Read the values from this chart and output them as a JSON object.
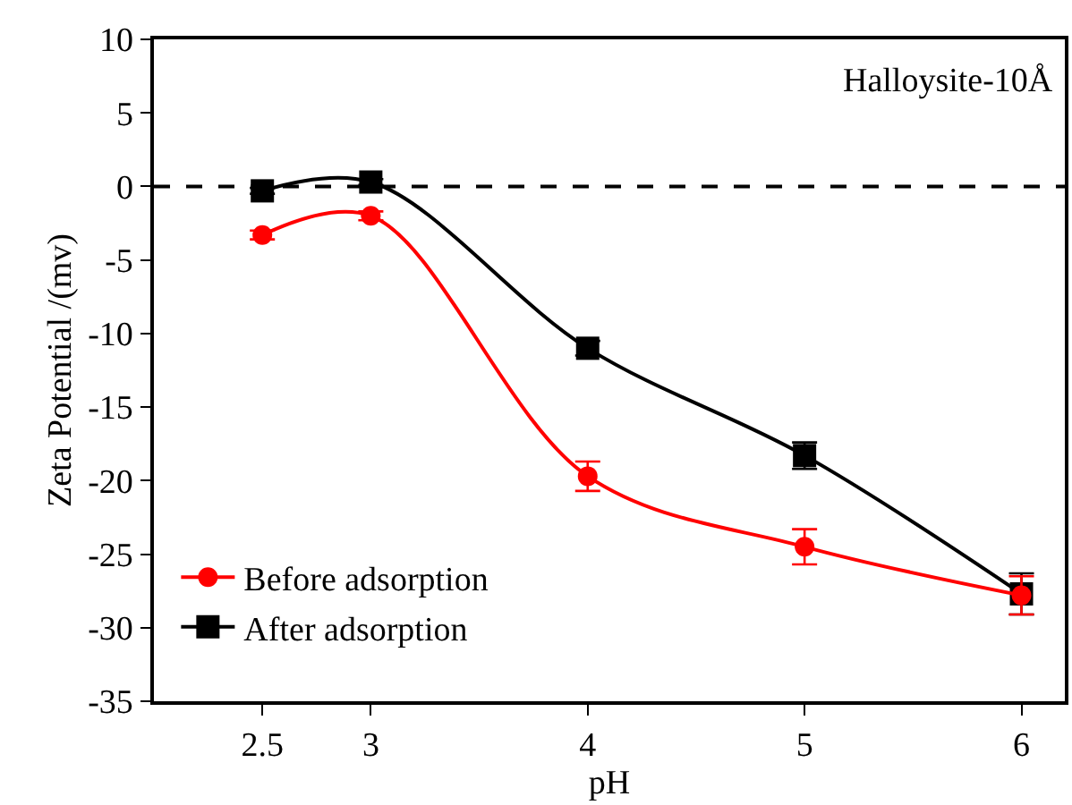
{
  "chart_data": {
    "type": "line",
    "xlabel": "pH",
    "ylabel": "Zeta Potential /(mv)",
    "x": [
      2.5,
      3,
      4,
      5,
      6
    ],
    "xlim": [
      2,
      6.2
    ],
    "xticks": [
      2.5,
      3,
      4,
      5,
      6
    ],
    "ylim": [
      -35,
      10
    ],
    "yticks": [
      10,
      5,
      0,
      -5,
      -10,
      -15,
      -20,
      -25,
      -30,
      -35
    ],
    "series": [
      {
        "name": "Before adsorption",
        "color": "#ff0000",
        "marker": "circle",
        "values": [
          -3.3,
          -2,
          -19.7,
          -24.5,
          -27.8
        ],
        "errors": [
          0.3,
          0.3,
          1,
          1.2,
          1.3
        ]
      },
      {
        "name": "After adsorption",
        "color": "#000000",
        "marker": "square",
        "values": [
          -0.3,
          0.3,
          -11,
          -18.3,
          -27.7
        ],
        "errors": [
          0.2,
          0.2,
          0.5,
          0.9,
          1.4
        ]
      }
    ],
    "ref_lines": [
      {
        "axis": "y",
        "value": 0,
        "color": "#000000",
        "line_style": "dashed"
      }
    ],
    "annotations": [
      "Halloysite-10Å"
    ],
    "legend": "bottom left",
    "line_style": "solid"
  }
}
